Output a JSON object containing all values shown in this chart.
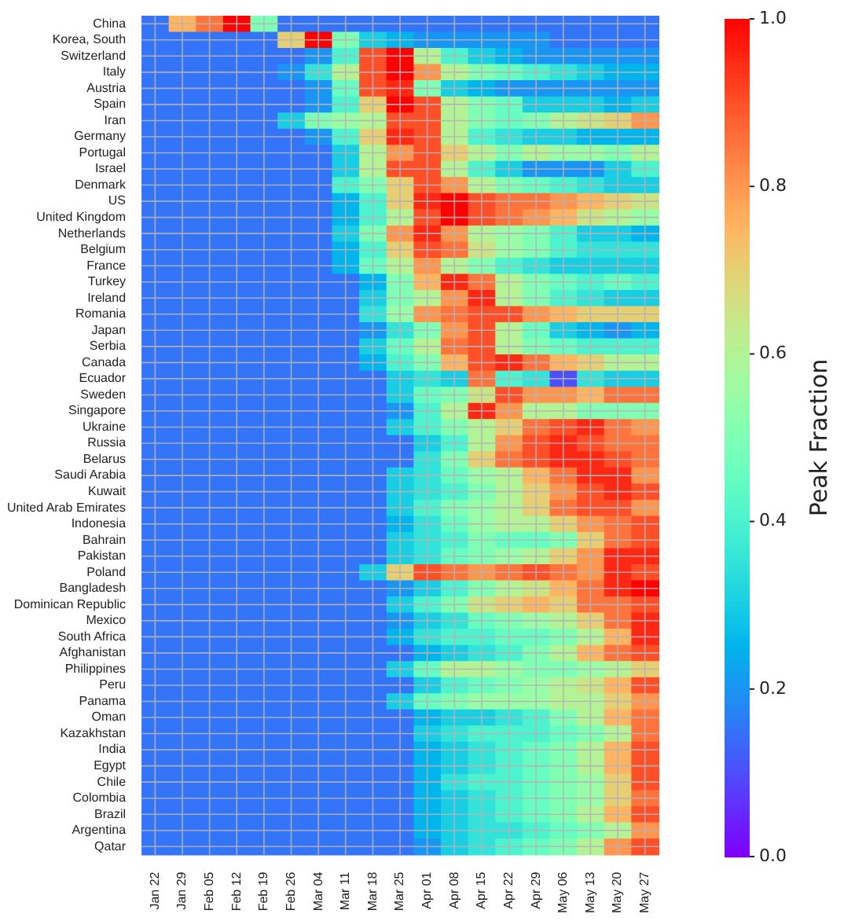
{
  "chart_data": {
    "type": "heatmap",
    "clabel": "Peak Fraction",
    "grid": true,
    "categories": [
      "Jan 22",
      "Jan 29",
      "Feb 05",
      "Feb 12",
      "Feb 19",
      "Feb 26",
      "Mar 04",
      "Mar 11",
      "Mar 18",
      "Mar 25",
      "Apr 01",
      "Apr 08",
      "Apr 15",
      "Apr 22",
      "Apr 29",
      "May 06",
      "May 13",
      "May 20",
      "May 27"
    ],
    "y_categories": [
      "China",
      "Korea, South",
      "Switzerland",
      "Italy",
      "Austria",
      "Spain",
      "Iran",
      "Germany",
      "Portugal",
      "Israel",
      "Denmark",
      "US",
      "United Kingdom",
      "Netherlands",
      "Belgium",
      "France",
      "Turkey",
      "Ireland",
      "Romania",
      "Japan",
      "Serbia",
      "Canada",
      "Ecuador",
      "Sweden",
      "Singapore",
      "Ukraine",
      "Russia",
      "Belarus",
      "Saudi Arabia",
      "Kuwait",
      "United Arab Emirates",
      "Indonesia",
      "Bahrain",
      "Pakistan",
      "Poland",
      "Bangladesh",
      "Dominican Republic",
      "Mexico",
      "South Africa",
      "Afghanistan",
      "Philippines",
      "Peru",
      "Panama",
      "Oman",
      "Kazakhstan",
      "India",
      "Egypt",
      "Chile",
      "Colombia",
      "Brazil",
      "Argentina",
      "Qatar"
    ],
    "cells": [
      [
        0.15,
        0.75,
        0.85,
        1,
        0.5,
        0.15,
        0.15,
        0.15,
        0.15,
        0.15,
        0.15,
        0.15,
        0.15,
        0.15,
        0.15,
        0.15,
        0.15,
        0.15,
        0.15
      ],
      [
        0.15,
        0.15,
        0.15,
        0.15,
        0.15,
        0.7,
        1,
        0.5,
        0.3,
        0.25,
        0.2,
        0.2,
        0.2,
        0.2,
        0.2,
        0.15,
        0.15,
        0.15,
        0.15
      ],
      [
        0.15,
        0.15,
        0.15,
        0.15,
        0.15,
        0.15,
        0.2,
        0.4,
        0.9,
        1,
        0.6,
        0.4,
        0.3,
        0.25,
        0.2,
        0.2,
        0.2,
        0.2,
        0.2
      ],
      [
        0.15,
        0.15,
        0.15,
        0.15,
        0.15,
        0.2,
        0.35,
        0.6,
        0.9,
        1,
        0.8,
        0.6,
        0.5,
        0.45,
        0.4,
        0.35,
        0.3,
        0.25,
        0.25
      ],
      [
        0.15,
        0.15,
        0.15,
        0.15,
        0.15,
        0.15,
        0.2,
        0.45,
        0.9,
        0.95,
        0.5,
        0.3,
        0.25,
        0.2,
        0.2,
        0.2,
        0.2,
        0.2,
        0.2
      ],
      [
        0.15,
        0.15,
        0.15,
        0.15,
        0.15,
        0.15,
        0.2,
        0.4,
        0.7,
        1,
        0.9,
        0.6,
        0.5,
        0.45,
        0.3,
        0.3,
        0.3,
        0.25,
        0.3
      ],
      [
        0.15,
        0.15,
        0.15,
        0.15,
        0.15,
        0.3,
        0.5,
        0.55,
        0.6,
        0.9,
        0.9,
        0.6,
        0.5,
        0.45,
        0.5,
        0.6,
        0.65,
        0.7,
        0.8
      ],
      [
        0.15,
        0.15,
        0.15,
        0.15,
        0.15,
        0.15,
        0.2,
        0.4,
        0.7,
        0.95,
        0.9,
        0.6,
        0.4,
        0.35,
        0.3,
        0.3,
        0.25,
        0.25,
        0.25
      ],
      [
        0.15,
        0.15,
        0.15,
        0.15,
        0.15,
        0.15,
        0.15,
        0.3,
        0.6,
        0.8,
        0.9,
        0.7,
        0.6,
        0.5,
        0.6,
        0.55,
        0.55,
        0.5,
        0.6
      ],
      [
        0.15,
        0.15,
        0.15,
        0.15,
        0.15,
        0.15,
        0.15,
        0.3,
        0.6,
        0.9,
        0.9,
        0.6,
        0.4,
        0.3,
        0.2,
        0.2,
        0.2,
        0.3,
        0.4
      ],
      [
        0.15,
        0.15,
        0.15,
        0.15,
        0.15,
        0.15,
        0.15,
        0.4,
        0.5,
        0.7,
        0.9,
        0.8,
        0.6,
        0.5,
        0.45,
        0.4,
        0.35,
        0.3,
        0.3
      ],
      [
        0.15,
        0.15,
        0.15,
        0.15,
        0.15,
        0.15,
        0.15,
        0.25,
        0.4,
        0.7,
        0.95,
        1,
        0.9,
        0.85,
        0.85,
        0.8,
        0.75,
        0.7,
        0.65
      ],
      [
        0.15,
        0.15,
        0.15,
        0.15,
        0.15,
        0.15,
        0.15,
        0.25,
        0.4,
        0.6,
        0.9,
        1,
        0.9,
        0.85,
        0.8,
        0.75,
        0.65,
        0.6,
        0.55
      ],
      [
        0.15,
        0.15,
        0.15,
        0.15,
        0.15,
        0.15,
        0.15,
        0.3,
        0.5,
        0.8,
        0.95,
        0.8,
        0.6,
        0.55,
        0.5,
        0.4,
        0.3,
        0.3,
        0.25
      ],
      [
        0.15,
        0.15,
        0.15,
        0.15,
        0.15,
        0.15,
        0.15,
        0.25,
        0.4,
        0.7,
        0.9,
        0.85,
        0.65,
        0.55,
        0.5,
        0.4,
        0.35,
        0.35,
        0.35
      ],
      [
        0.15,
        0.15,
        0.15,
        0.15,
        0.15,
        0.15,
        0.15,
        0.25,
        0.45,
        0.6,
        0.8,
        0.6,
        0.5,
        0.4,
        0.35,
        0.3,
        0.3,
        0.3,
        0.3
      ],
      [
        0.15,
        0.15,
        0.15,
        0.15,
        0.15,
        0.15,
        0.15,
        0.15,
        0.25,
        0.5,
        0.75,
        0.95,
        0.85,
        0.6,
        0.5,
        0.45,
        0.4,
        0.45,
        0.4
      ],
      [
        0.15,
        0.15,
        0.15,
        0.15,
        0.15,
        0.15,
        0.15,
        0.15,
        0.3,
        0.5,
        0.6,
        0.8,
        0.95,
        0.6,
        0.5,
        0.4,
        0.35,
        0.3,
        0.3
      ],
      [
        0.15,
        0.15,
        0.15,
        0.15,
        0.15,
        0.15,
        0.15,
        0.15,
        0.35,
        0.55,
        0.8,
        0.85,
        0.9,
        0.9,
        0.8,
        0.75,
        0.7,
        0.7,
        0.7
      ],
      [
        0.15,
        0.15,
        0.15,
        0.15,
        0.15,
        0.15,
        0.15,
        0.15,
        0.2,
        0.35,
        0.5,
        0.8,
        0.9,
        0.6,
        0.45,
        0.3,
        0.25,
        0.2,
        0.25
      ],
      [
        0.15,
        0.15,
        0.15,
        0.15,
        0.15,
        0.15,
        0.15,
        0.15,
        0.3,
        0.45,
        0.6,
        0.85,
        0.9,
        0.6,
        0.5,
        0.45,
        0.4,
        0.4,
        0.4
      ],
      [
        0.15,
        0.15,
        0.15,
        0.15,
        0.15,
        0.15,
        0.15,
        0.15,
        0.25,
        0.4,
        0.5,
        0.75,
        0.9,
        0.95,
        0.85,
        0.75,
        0.7,
        0.6,
        0.6
      ],
      [
        0.15,
        0.15,
        0.15,
        0.15,
        0.15,
        0.15,
        0.15,
        0.15,
        0.15,
        0.3,
        0.35,
        0.3,
        0.85,
        0.4,
        0.35,
        0.1,
        0.35,
        0.3,
        0.3
      ],
      [
        0.15,
        0.15,
        0.15,
        0.15,
        0.15,
        0.15,
        0.15,
        0.15,
        0.15,
        0.3,
        0.45,
        0.5,
        0.65,
        0.9,
        0.8,
        0.8,
        0.75,
        0.85,
        0.85
      ],
      [
        0.15,
        0.15,
        0.15,
        0.15,
        0.15,
        0.15,
        0.15,
        0.15,
        0.15,
        0.2,
        0.4,
        0.6,
        0.95,
        0.8,
        0.6,
        0.6,
        0.5,
        0.5,
        0.5
      ],
      [
        0.15,
        0.15,
        0.15,
        0.15,
        0.15,
        0.15,
        0.15,
        0.15,
        0.15,
        0.3,
        0.4,
        0.5,
        0.6,
        0.7,
        0.85,
        0.9,
        0.95,
        0.85,
        0.8
      ],
      [
        0.15,
        0.15,
        0.15,
        0.15,
        0.15,
        0.15,
        0.15,
        0.15,
        0.15,
        0.15,
        0.3,
        0.4,
        0.6,
        0.8,
        0.9,
        0.95,
        0.9,
        0.85,
        0.85
      ],
      [
        0.15,
        0.15,
        0.15,
        0.15,
        0.15,
        0.15,
        0.15,
        0.15,
        0.15,
        0.15,
        0.35,
        0.5,
        0.7,
        0.85,
        0.9,
        0.95,
        0.95,
        0.9,
        0.85
      ],
      [
        0.15,
        0.15,
        0.15,
        0.15,
        0.15,
        0.15,
        0.15,
        0.15,
        0.15,
        0.3,
        0.35,
        0.45,
        0.55,
        0.6,
        0.75,
        0.85,
        0.95,
        0.95,
        0.8
      ],
      [
        0.15,
        0.15,
        0.15,
        0.15,
        0.15,
        0.15,
        0.15,
        0.15,
        0.15,
        0.3,
        0.35,
        0.4,
        0.5,
        0.6,
        0.7,
        0.8,
        0.9,
        0.95,
        0.9
      ],
      [
        0.15,
        0.15,
        0.15,
        0.15,
        0.15,
        0.15,
        0.15,
        0.15,
        0.15,
        0.3,
        0.4,
        0.5,
        0.55,
        0.6,
        0.7,
        0.85,
        0.9,
        0.9,
        0.8
      ],
      [
        0.15,
        0.15,
        0.15,
        0.15,
        0.15,
        0.15,
        0.15,
        0.15,
        0.15,
        0.25,
        0.35,
        0.45,
        0.55,
        0.6,
        0.6,
        0.7,
        0.8,
        0.85,
        0.9
      ],
      [
        0.15,
        0.15,
        0.15,
        0.15,
        0.15,
        0.15,
        0.15,
        0.15,
        0.15,
        0.3,
        0.35,
        0.4,
        0.5,
        0.45,
        0.45,
        0.5,
        0.7,
        0.85,
        0.9
      ],
      [
        0.15,
        0.15,
        0.15,
        0.15,
        0.15,
        0.15,
        0.15,
        0.15,
        0.15,
        0.3,
        0.35,
        0.45,
        0.5,
        0.55,
        0.6,
        0.7,
        0.8,
        0.95,
        0.95
      ],
      [
        0.15,
        0.15,
        0.15,
        0.15,
        0.15,
        0.15,
        0.15,
        0.15,
        0.3,
        0.7,
        0.9,
        0.85,
        0.8,
        0.85,
        0.9,
        0.85,
        0.8,
        0.95,
        0.9
      ],
      [
        0.15,
        0.15,
        0.15,
        0.15,
        0.15,
        0.15,
        0.15,
        0.15,
        0.15,
        0.2,
        0.3,
        0.4,
        0.5,
        0.6,
        0.65,
        0.75,
        0.85,
        0.95,
        1
      ],
      [
        0.15,
        0.15,
        0.15,
        0.15,
        0.15,
        0.15,
        0.15,
        0.15,
        0.15,
        0.3,
        0.4,
        0.5,
        0.65,
        0.7,
        0.75,
        0.7,
        0.85,
        0.85,
        0.9
      ],
      [
        0.15,
        0.15,
        0.15,
        0.15,
        0.15,
        0.15,
        0.15,
        0.15,
        0.15,
        0.2,
        0.3,
        0.35,
        0.45,
        0.5,
        0.55,
        0.6,
        0.7,
        0.85,
        0.95
      ],
      [
        0.15,
        0.15,
        0.15,
        0.15,
        0.15,
        0.15,
        0.15,
        0.15,
        0.15,
        0.25,
        0.35,
        0.4,
        0.4,
        0.45,
        0.45,
        0.5,
        0.6,
        0.75,
        0.95
      ],
      [
        0.15,
        0.15,
        0.15,
        0.15,
        0.15,
        0.15,
        0.15,
        0.15,
        0.15,
        0.15,
        0.25,
        0.3,
        0.35,
        0.4,
        0.5,
        0.6,
        0.75,
        0.85,
        0.9
      ],
      [
        0.15,
        0.15,
        0.15,
        0.15,
        0.15,
        0.15,
        0.15,
        0.15,
        0.15,
        0.3,
        0.45,
        0.6,
        0.6,
        0.55,
        0.5,
        0.5,
        0.55,
        0.6,
        0.7
      ],
      [
        0.15,
        0.15,
        0.15,
        0.15,
        0.15,
        0.15,
        0.15,
        0.15,
        0.15,
        0.15,
        0.3,
        0.4,
        0.45,
        0.5,
        0.55,
        0.6,
        0.65,
        0.75,
        0.9
      ],
      [
        0.15,
        0.15,
        0.15,
        0.15,
        0.15,
        0.15,
        0.15,
        0.15,
        0.15,
        0.3,
        0.45,
        0.5,
        0.55,
        0.55,
        0.55,
        0.6,
        0.6,
        0.7,
        0.8
      ],
      [
        0.15,
        0.15,
        0.15,
        0.15,
        0.15,
        0.15,
        0.15,
        0.15,
        0.15,
        0.15,
        0.25,
        0.3,
        0.3,
        0.35,
        0.4,
        0.5,
        0.6,
        0.75,
        0.85
      ],
      [
        0.15,
        0.15,
        0.15,
        0.15,
        0.15,
        0.15,
        0.15,
        0.15,
        0.15,
        0.15,
        0.3,
        0.35,
        0.4,
        0.4,
        0.4,
        0.45,
        0.5,
        0.6,
        0.85
      ],
      [
        0.15,
        0.15,
        0.15,
        0.15,
        0.15,
        0.15,
        0.15,
        0.15,
        0.15,
        0.15,
        0.25,
        0.3,
        0.35,
        0.4,
        0.45,
        0.5,
        0.6,
        0.75,
        0.9
      ],
      [
        0.15,
        0.15,
        0.15,
        0.15,
        0.15,
        0.15,
        0.15,
        0.15,
        0.15,
        0.15,
        0.25,
        0.3,
        0.35,
        0.4,
        0.45,
        0.5,
        0.6,
        0.75,
        0.9
      ],
      [
        0.15,
        0.15,
        0.15,
        0.15,
        0.15,
        0.15,
        0.15,
        0.15,
        0.15,
        0.15,
        0.25,
        0.35,
        0.4,
        0.4,
        0.45,
        0.5,
        0.55,
        0.7,
        0.9
      ],
      [
        0.15,
        0.15,
        0.15,
        0.15,
        0.15,
        0.15,
        0.15,
        0.15,
        0.15,
        0.15,
        0.25,
        0.3,
        0.35,
        0.4,
        0.45,
        0.5,
        0.55,
        0.7,
        0.85
      ],
      [
        0.15,
        0.15,
        0.15,
        0.15,
        0.15,
        0.15,
        0.15,
        0.15,
        0.15,
        0.15,
        0.25,
        0.3,
        0.35,
        0.4,
        0.45,
        0.5,
        0.6,
        0.75,
        0.9
      ],
      [
        0.15,
        0.15,
        0.15,
        0.15,
        0.15,
        0.15,
        0.15,
        0.15,
        0.15,
        0.15,
        0.25,
        0.3,
        0.35,
        0.35,
        0.4,
        0.45,
        0.5,
        0.6,
        0.8
      ],
      [
        0.15,
        0.15,
        0.15,
        0.15,
        0.15,
        0.15,
        0.15,
        0.15,
        0.15,
        0.15,
        0.2,
        0.3,
        0.35,
        0.4,
        0.45,
        0.5,
        0.6,
        0.8,
        0.9
      ]
    ],
    "clim": [
      0,
      1
    ],
    "cticks": [
      {
        "value": 0,
        "label": "0.0"
      },
      0.2,
      0.4,
      0.6,
      0.8,
      {
        "value": 1,
        "label": "1.0"
      }
    ]
  }
}
